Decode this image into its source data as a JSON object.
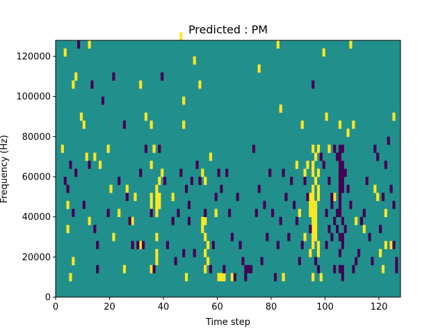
{
  "chart_data": {
    "type": "heatmap",
    "title": "Predicted : PM",
    "xlabel": "Time step",
    "ylabel": "Frequency (Hz)",
    "xlim": [
      0,
      128
    ],
    "ylim": [
      0,
      128000
    ],
    "x_ticks": [
      0,
      20,
      40,
      60,
      80,
      100,
      120
    ],
    "y_ticks": [
      0,
      20000,
      40000,
      60000,
      80000,
      100000,
      120000
    ],
    "x_tick_labels": [
      "0",
      "20",
      "40",
      "60",
      "80",
      "100",
      "120"
    ],
    "y_tick_labels": [
      "0",
      "20000",
      "40000",
      "60000",
      "80000",
      "100000",
      "120000"
    ],
    "grid": false,
    "colormap": "viridis",
    "colors": {
      "background": "#21908d",
      "high": "#fde725",
      "low": "#440154"
    },
    "background_value": 0,
    "cell_height_hz": 4000,
    "high_cells": [
      [
        2,
        72000
      ],
      [
        3,
        120000
      ],
      [
        4,
        44000
      ],
      [
        4,
        32000
      ],
      [
        5,
        8000
      ],
      [
        6,
        104000
      ],
      [
        6,
        16000
      ],
      [
        7,
        108000
      ],
      [
        9,
        88000
      ],
      [
        10,
        84000
      ],
      [
        11,
        68000
      ],
      [
        12,
        124000
      ],
      [
        12,
        36000
      ],
      [
        14,
        68000
      ],
      [
        16,
        64000
      ],
      [
        19,
        72000
      ],
      [
        20,
        52000
      ],
      [
        21,
        28000
      ],
      [
        23,
        40000
      ],
      [
        26,
        52000
      ],
      [
        25,
        12000
      ],
      [
        28,
        36000
      ],
      [
        29,
        48000
      ],
      [
        31,
        104000
      ],
      [
        31,
        24000
      ],
      [
        33,
        88000
      ],
      [
        35,
        84000
      ],
      [
        35,
        64000
      ],
      [
        35,
        48000
      ],
      [
        35,
        44000
      ],
      [
        35,
        12000
      ],
      [
        36,
        72000
      ],
      [
        37,
        52000
      ],
      [
        37,
        48000
      ],
      [
        37,
        44000
      ],
      [
        37,
        40000
      ],
      [
        37,
        28000
      ],
      [
        37,
        20000
      ],
      [
        37,
        16000
      ],
      [
        38,
        56000
      ],
      [
        38,
        48000
      ],
      [
        38,
        44000
      ],
      [
        39,
        60000
      ],
      [
        43,
        48000
      ],
      [
        46,
        128000
      ],
      [
        47,
        96000
      ],
      [
        47,
        84000
      ],
      [
        48,
        8000
      ],
      [
        51,
        116000
      ],
      [
        53,
        104000
      ],
      [
        54,
        60000
      ],
      [
        54,
        36000
      ],
      [
        54,
        32000
      ],
      [
        55,
        56000
      ],
      [
        55,
        36000
      ],
      [
        55,
        28000
      ],
      [
        55,
        20000
      ],
      [
        55,
        12000
      ],
      [
        56,
        24000
      ],
      [
        56,
        16000
      ],
      [
        57,
        68000
      ],
      [
        59,
        40000
      ],
      [
        60,
        8000
      ],
      [
        61,
        8000
      ],
      [
        62,
        8000
      ],
      [
        65,
        8000
      ],
      [
        75,
        112000
      ],
      [
        82,
        124000
      ],
      [
        83,
        92000
      ],
      [
        84,
        8000
      ],
      [
        89,
        64000
      ],
      [
        90,
        40000
      ],
      [
        91,
        84000
      ],
      [
        92,
        28000
      ],
      [
        92,
        60000
      ],
      [
        93,
        64000
      ],
      [
        94,
        48000
      ],
      [
        94,
        44000
      ],
      [
        94,
        40000
      ],
      [
        94,
        20000
      ],
      [
        95,
        72000
      ],
      [
        95,
        64000
      ],
      [
        95,
        60000
      ],
      [
        95,
        52000
      ],
      [
        95,
        48000
      ],
      [
        95,
        44000
      ],
      [
        95,
        40000
      ],
      [
        95,
        36000
      ],
      [
        95,
        32000
      ],
      [
        95,
        28000
      ],
      [
        95,
        24000
      ],
      [
        95,
        8000
      ],
      [
        96,
        68000
      ],
      [
        96,
        56000
      ],
      [
        96,
        44000
      ],
      [
        96,
        40000
      ],
      [
        96,
        36000
      ],
      [
        96,
        32000
      ],
      [
        96,
        28000
      ],
      [
        97,
        72000
      ],
      [
        97,
        60000
      ],
      [
        97,
        52000
      ],
      [
        97,
        48000
      ],
      [
        97,
        24000
      ],
      [
        97,
        20000
      ],
      [
        98,
        8000
      ],
      [
        99,
        120000
      ],
      [
        100,
        88000
      ],
      [
        101,
        72000
      ],
      [
        103,
        48000
      ],
      [
        105,
        84000
      ],
      [
        108,
        80000
      ],
      [
        109,
        124000
      ],
      [
        110,
        84000
      ],
      [
        111,
        36000
      ],
      [
        114,
        32000
      ],
      [
        118,
        52000
      ],
      [
        119,
        48000
      ],
      [
        120,
        20000
      ],
      [
        121,
        12000
      ],
      [
        122,
        40000
      ],
      [
        122,
        24000
      ],
      [
        124,
        24000
      ],
      [
        125,
        88000
      ]
    ],
    "low_cells": [
      [
        3,
        56000
      ],
      [
        4,
        52000
      ],
      [
        5,
        64000
      ],
      [
        6,
        40000
      ],
      [
        7,
        60000
      ],
      [
        8,
        124000
      ],
      [
        10,
        44000
      ],
      [
        12,
        64000
      ],
      [
        13,
        104000
      ],
      [
        14,
        32000
      ],
      [
        15,
        12000
      ],
      [
        15,
        24000
      ],
      [
        17,
        96000
      ],
      [
        19,
        40000
      ],
      [
        21,
        108000
      ],
      [
        23,
        56000
      ],
      [
        25,
        84000
      ],
      [
        26,
        48000
      ],
      [
        27,
        36000
      ],
      [
        28,
        24000
      ],
      [
        30,
        24000
      ],
      [
        31,
        60000
      ],
      [
        32,
        24000
      ],
      [
        33,
        72000
      ],
      [
        35,
        40000
      ],
      [
        36,
        12000
      ],
      [
        38,
        72000
      ],
      [
        39,
        108000
      ],
      [
        40,
        56000
      ],
      [
        41,
        24000
      ],
      [
        43,
        36000
      ],
      [
        44,
        16000
      ],
      [
        45,
        40000
      ],
      [
        46,
        60000
      ],
      [
        47,
        20000
      ],
      [
        48,
        52000
      ],
      [
        49,
        44000
      ],
      [
        49,
        36000
      ],
      [
        50,
        56000
      ],
      [
        51,
        20000
      ],
      [
        52,
        64000
      ],
      [
        53,
        56000
      ],
      [
        55,
        40000
      ],
      [
        57,
        12000
      ],
      [
        58,
        24000
      ],
      [
        59,
        48000
      ],
      [
        60,
        60000
      ],
      [
        61,
        52000
      ],
      [
        62,
        12000
      ],
      [
        63,
        60000
      ],
      [
        64,
        40000
      ],
      [
        65,
        28000
      ],
      [
        66,
        8000
      ],
      [
        67,
        48000
      ],
      [
        68,
        24000
      ],
      [
        69,
        16000
      ],
      [
        70,
        12000
      ],
      [
        70,
        8000
      ],
      [
        71,
        12000
      ],
      [
        72,
        12000
      ],
      [
        73,
        72000
      ],
      [
        74,
        40000
      ],
      [
        75,
        52000
      ],
      [
        76,
        16000
      ],
      [
        77,
        44000
      ],
      [
        78,
        28000
      ],
      [
        79,
        60000
      ],
      [
        80,
        40000
      ],
      [
        81,
        8000
      ],
      [
        82,
        24000
      ],
      [
        83,
        36000
      ],
      [
        84,
        60000
      ],
      [
        85,
        48000
      ],
      [
        86,
        28000
      ],
      [
        87,
        56000
      ],
      [
        88,
        44000
      ],
      [
        89,
        36000
      ],
      [
        90,
        16000
      ],
      [
        91,
        24000
      ],
      [
        92,
        56000
      ],
      [
        93,
        48000
      ],
      [
        94,
        32000
      ],
      [
        95,
        104000
      ],
      [
        96,
        16000
      ],
      [
        97,
        12000
      ],
      [
        98,
        68000
      ],
      [
        99,
        64000
      ],
      [
        100,
        40000
      ],
      [
        100,
        24000
      ],
      [
        101,
        56000
      ],
      [
        101,
        32000
      ],
      [
        102,
        48000
      ],
      [
        102,
        44000
      ],
      [
        102,
        28000
      ],
      [
        103,
        72000
      ],
      [
        103,
        36000
      ],
      [
        103,
        12000
      ],
      [
        104,
        68000
      ],
      [
        104,
        40000
      ],
      [
        104,
        32000
      ],
      [
        105,
        72000
      ],
      [
        105,
        68000
      ],
      [
        105,
        64000
      ],
      [
        105,
        60000
      ],
      [
        105,
        56000
      ],
      [
        105,
        52000
      ],
      [
        105,
        48000
      ],
      [
        105,
        44000
      ],
      [
        105,
        40000
      ],
      [
        105,
        28000
      ],
      [
        105,
        20000
      ],
      [
        105,
        12000
      ],
      [
        106,
        72000
      ],
      [
        106,
        64000
      ],
      [
        106,
        60000
      ],
      [
        106,
        56000
      ],
      [
        106,
        52000
      ],
      [
        106,
        36000
      ],
      [
        106,
        28000
      ],
      [
        106,
        24000
      ],
      [
        106,
        12000
      ],
      [
        106,
        8000
      ],
      [
        107,
        60000
      ],
      [
        107,
        32000
      ],
      [
        108,
        52000
      ],
      [
        109,
        44000
      ],
      [
        110,
        12000
      ],
      [
        111,
        16000
      ],
      [
        112,
        20000
      ],
      [
        113,
        36000
      ],
      [
        114,
        40000
      ],
      [
        115,
        56000
      ],
      [
        116,
        28000
      ],
      [
        117,
        16000
      ],
      [
        118,
        72000
      ],
      [
        119,
        68000
      ],
      [
        120,
        32000
      ],
      [
        121,
        48000
      ],
      [
        122,
        64000
      ],
      [
        123,
        76000
      ],
      [
        124,
        52000
      ],
      [
        125,
        24000
      ],
      [
        125,
        44000
      ],
      [
        126,
        12000
      ],
      [
        126,
        16000
      ]
    ]
  }
}
